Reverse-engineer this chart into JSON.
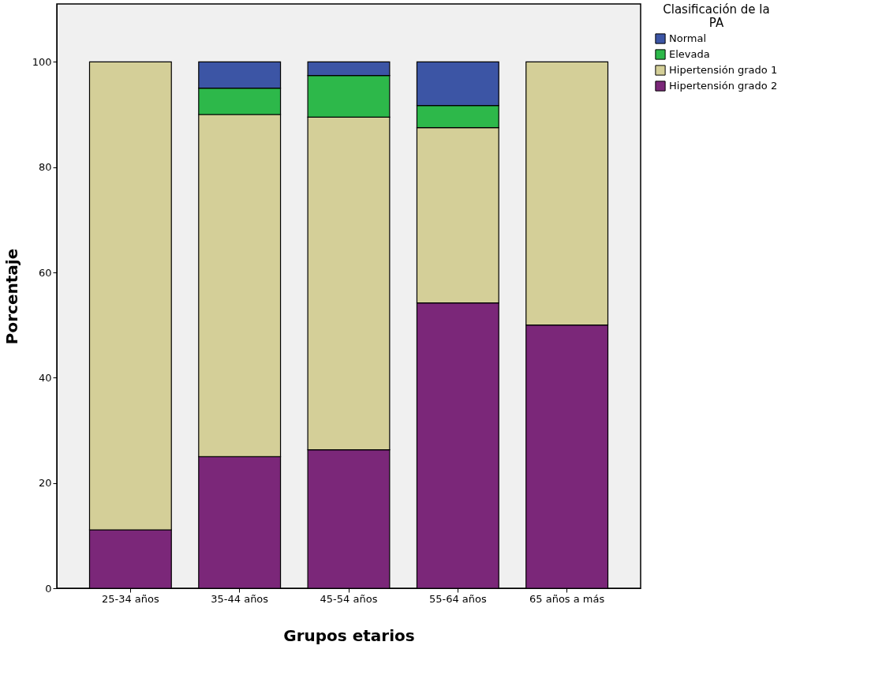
{
  "chart_data": {
    "type": "bar",
    "stacked": true,
    "xlabel": "Grupos etarios",
    "ylabel": "Porcentaje",
    "legend_title": "Clasificación de la PA",
    "legend": "top right",
    "categories": [
      "25-34 años",
      "35-44 años",
      "45-54 años",
      "55-64 años",
      "65 años a más"
    ],
    "series": [
      {
        "name": "Hipertensión grado 2",
        "color": "#7b2779",
        "values": [
          11.1,
          25.0,
          26.3,
          54.2,
          50.0
        ]
      },
      {
        "name": "Hipertensión grado 1",
        "color": "#d4cf98",
        "values": [
          88.9,
          65.0,
          63.2,
          33.3,
          50.0
        ]
      },
      {
        "name": "Elevada",
        "color": "#2db84a",
        "values": [
          null,
          5.0,
          7.9,
          4.2,
          null
        ]
      },
      {
        "name": "Normal",
        "color": "#3c55a5",
        "values": [
          null,
          5.0,
          2.6,
          8.3,
          null
        ]
      }
    ],
    "ylim": [
      0,
      111
    ],
    "yticks": [
      0,
      20,
      40,
      60,
      80,
      100
    ],
    "grid": false
  }
}
